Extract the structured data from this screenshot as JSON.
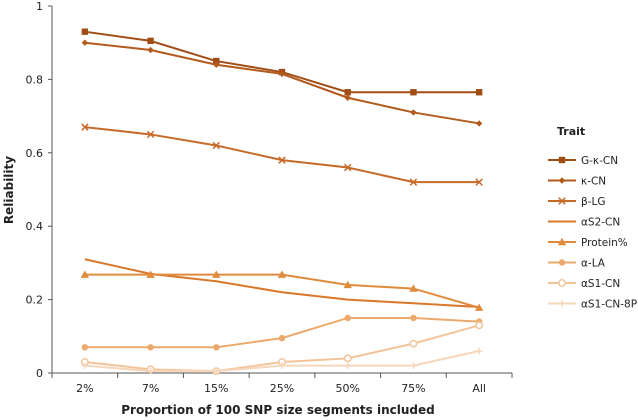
{
  "chart_data": {
    "type": "line",
    "title": "",
    "xlabel": "Proportion of 100 SNP size segments included",
    "ylabel": "Reliability",
    "ylim": [
      0,
      1
    ],
    "yticks": [
      "0",
      "0.2",
      "0.4",
      "0.6",
      "0.8",
      "1"
    ],
    "categories": [
      "2%",
      "7%",
      "15%",
      "25%",
      "50%",
      "75%",
      "All"
    ],
    "grid": false,
    "legend": {
      "title": "Trait",
      "position": "right"
    },
    "series": [
      {
        "name": "G-κ-CN",
        "marker": "square",
        "color": "#a14e16",
        "values": [
          0.93,
          0.905,
          0.85,
          0.82,
          0.765,
          0.765,
          0.765
        ]
      },
      {
        "name": "κ-CN",
        "marker": "diamond",
        "color": "#b35a1d",
        "values": [
          0.9,
          0.88,
          0.84,
          0.815,
          0.75,
          0.71,
          0.68
        ]
      },
      {
        "name": "β-LG",
        "marker": "x",
        "color": "#c66a28",
        "values": [
          0.67,
          0.65,
          0.62,
          0.58,
          0.56,
          0.52,
          0.52
        ]
      },
      {
        "name": "αS2-CN",
        "marker": "none",
        "color": "#d9782b",
        "values": [
          0.31,
          0.27,
          0.25,
          0.22,
          0.2,
          0.19,
          0.18
        ]
      },
      {
        "name": "Protein%",
        "marker": "triangle",
        "color": "#e08a3c",
        "values": [
          0.268,
          0.268,
          0.268,
          0.268,
          0.24,
          0.23,
          0.178
        ]
      },
      {
        "name": "α-LA",
        "marker": "circle",
        "color": "#eca96c",
        "values": [
          0.07,
          0.07,
          0.07,
          0.095,
          0.15,
          0.15,
          0.14
        ]
      },
      {
        "name": "αS1-CN",
        "marker": "hollow-circle",
        "color": "#f3c49a",
        "values": [
          0.03,
          0.01,
          0.005,
          0.03,
          0.04,
          0.08,
          0.13
        ]
      },
      {
        "name": "αS1-CN-8P",
        "marker": "plus",
        "color": "#f7d7bb",
        "values": [
          0.02,
          0.005,
          0.005,
          0.02,
          0.02,
          0.02,
          0.06
        ]
      }
    ]
  }
}
